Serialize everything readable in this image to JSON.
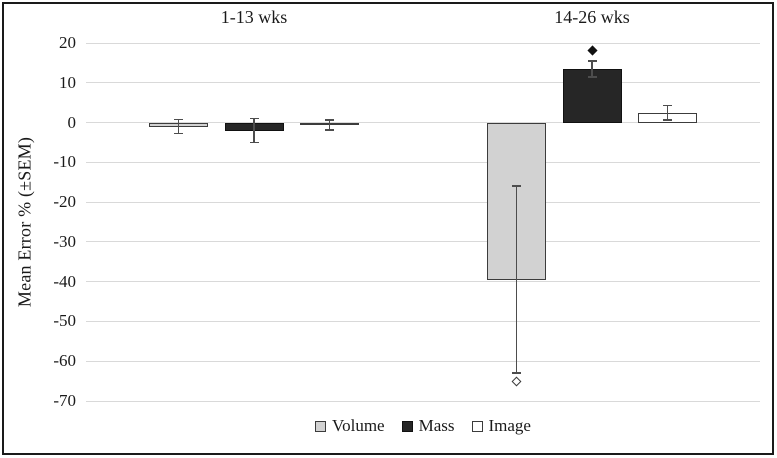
{
  "chart_data": {
    "type": "bar",
    "title": "",
    "ylabel": "Mean Error % (±SEM)",
    "ylim": [
      -70,
      20
    ],
    "yticks": [
      20,
      10,
      0,
      -10,
      -20,
      -30,
      -40,
      -50,
      -60,
      -70
    ],
    "grid": true,
    "legend_position": "bottom",
    "groups": [
      "1-13 wks",
      "14-26 wks"
    ],
    "series": [
      {
        "name": "Volume",
        "fill": "#d2d2d2",
        "border": "#3c3c3c",
        "values": [
          -1.0,
          -39.5
        ],
        "sem": [
          1.8,
          23.5
        ]
      },
      {
        "name": "Mass",
        "fill": "#262626",
        "border": "#111111",
        "values": [
          -2.0,
          13.5
        ],
        "sem": [
          3.0,
          2.0
        ]
      },
      {
        "name": "Image",
        "fill": "#ffffff",
        "border": "#3c3c3c",
        "values": [
          -0.6,
          2.5
        ],
        "sem": [
          1.3,
          1.8
        ]
      }
    ],
    "markers": [
      {
        "shape": "filled-diamond",
        "series": "Mass",
        "group": "14-26 wks",
        "value": 18
      },
      {
        "shape": "open-diamond",
        "series": "Volume",
        "group": "14-26 wks",
        "value": -65
      }
    ],
    "colors": {
      "gridline": "#d9d9d9",
      "error_bar": "#4d4d4d",
      "text": "#1a1a1a",
      "frame_border": "#1a1a1a",
      "background": "#ffffff",
      "marker_filled": "#111111",
      "marker_open_fill": "#ffffff",
      "marker_open_border": "#3a3a3a"
    }
  }
}
